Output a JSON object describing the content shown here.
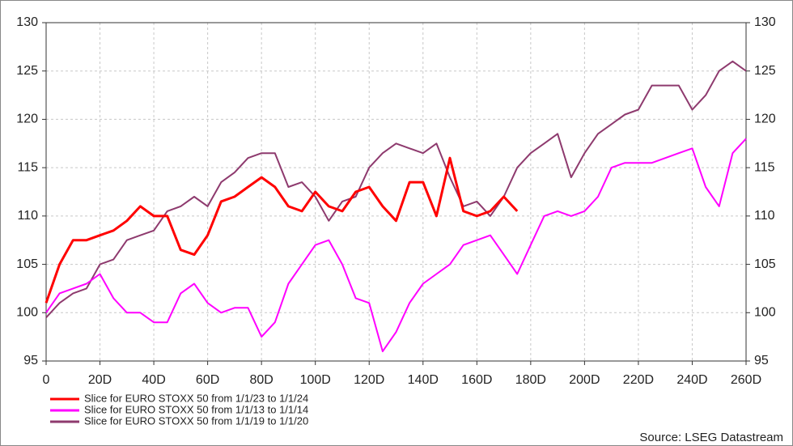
{
  "chart_data": {
    "type": "line",
    "x": [
      0,
      5,
      10,
      15,
      20,
      25,
      30,
      35,
      40,
      45,
      50,
      55,
      60,
      65,
      70,
      75,
      80,
      85,
      90,
      95,
      100,
      105,
      110,
      115,
      120,
      125,
      130,
      135,
      140,
      145,
      150,
      155,
      160,
      165,
      170,
      175,
      180,
      185,
      190,
      195,
      200,
      205,
      210,
      215,
      220,
      225,
      230,
      235,
      240,
      245,
      250,
      255,
      260
    ],
    "series": [
      {
        "name": "Slice for EURO STOXX 50 from 1/1/23 to 1/1/24",
        "color": "#ff0000",
        "values": [
          101,
          105,
          107.5,
          107.5,
          108,
          108.5,
          109.5,
          111,
          110,
          110,
          106.5,
          106,
          108,
          111.5,
          112,
          113,
          114,
          113,
          111,
          110.5,
          112.5,
          111,
          110.5,
          112.5,
          113,
          111,
          109.5,
          113.5,
          113.5,
          110,
          116,
          110.5,
          110,
          110.5,
          112,
          110.5,
          null,
          null,
          null,
          null,
          null,
          null,
          null,
          null,
          null,
          null,
          null,
          null,
          null,
          null,
          null,
          null,
          null
        ]
      },
      {
        "name": "Slice for EURO STOXX 50 from 1/1/13 to 1/1/14",
        "color": "#ff00ff",
        "values": [
          100,
          102,
          102.5,
          103,
          104,
          101.5,
          100,
          100,
          99,
          99,
          102,
          103,
          101,
          100,
          100.5,
          100.5,
          97.5,
          99,
          103,
          105,
          107,
          107.5,
          105,
          101.5,
          101,
          96,
          98,
          101,
          103,
          104,
          105,
          107,
          107.5,
          108,
          106,
          104,
          107,
          110,
          110.5,
          110,
          110.5,
          112,
          115,
          115.5,
          115.5,
          115.5,
          116,
          116.5,
          117,
          113,
          111,
          116.5,
          118
        ]
      },
      {
        "name": "Slice for EURO STOXX 50 from 1/1/19 to 1/1/20",
        "color": "#8e3a6e",
        "values": [
          99.5,
          101,
          102,
          102.5,
          105,
          105.5,
          107.5,
          108,
          108.5,
          110.5,
          111,
          112,
          111,
          113.5,
          114.5,
          116,
          116.5,
          116.5,
          113,
          113.5,
          112,
          109.5,
          111.5,
          112,
          115,
          116.5,
          117.5,
          117,
          116.5,
          117.5,
          114,
          111,
          111.5,
          110,
          112,
          115,
          116.5,
          117.5,
          118.5,
          114,
          116.5,
          118.5,
          119.5,
          120.5,
          121,
          123.5,
          123.5,
          123.5,
          121,
          122.5,
          125,
          126,
          125
        ]
      }
    ],
    "xlim": [
      0,
      260
    ],
    "xticks": [
      0,
      {
        "value": 20,
        "label": "20D"
      },
      {
        "value": 40,
        "label": "40D"
      },
      {
        "value": 60,
        "label": "60D"
      },
      {
        "value": 80,
        "label": "80D"
      },
      {
        "value": 100,
        "label": "100D"
      },
      {
        "value": 120,
        "label": "120D"
      },
      {
        "value": 140,
        "label": "140D"
      },
      {
        "value": 160,
        "label": "160D"
      },
      {
        "value": 180,
        "label": "180D"
      },
      {
        "value": 200,
        "label": "200D"
      },
      {
        "value": 220,
        "label": "220D"
      },
      {
        "value": 240,
        "label": "240D"
      },
      {
        "value": 260,
        "label": "260D"
      }
    ],
    "ylim": [
      95,
      130
    ],
    "yticks": [
      95,
      100,
      105,
      110,
      115,
      120,
      125,
      130
    ],
    "grid": true,
    "source": "Source: LSEG Datastream"
  }
}
